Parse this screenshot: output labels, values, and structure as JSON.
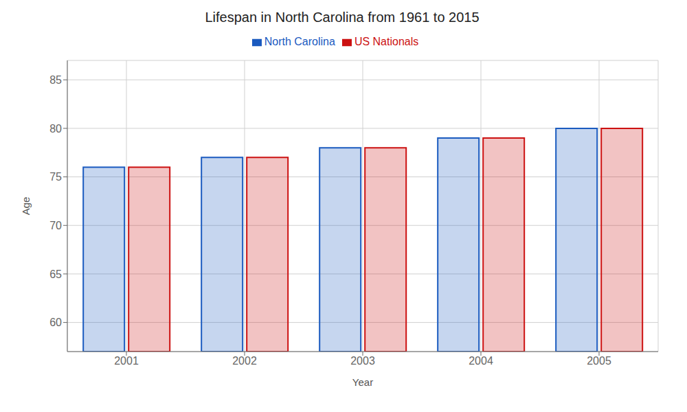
{
  "chart_data": {
    "type": "bar",
    "title": "Lifespan in North Carolina from 1961 to 2015",
    "x_label": "Year",
    "y_label": "Age",
    "categories": [
      "2001",
      "2002",
      "2003",
      "2004",
      "2005"
    ],
    "series": [
      {
        "name": "North Carolina",
        "color": "#1a5abf",
        "values": [
          76,
          77,
          78,
          79,
          80
        ]
      },
      {
        "name": "US Nationals",
        "color": "#cc1111",
        "values": [
          76,
          77,
          78,
          79,
          80
        ]
      }
    ],
    "ylim": [
      57,
      87
    ],
    "yticks": [
      60,
      65,
      70,
      75,
      80,
      85
    ],
    "grid": true,
    "legend": "top"
  }
}
